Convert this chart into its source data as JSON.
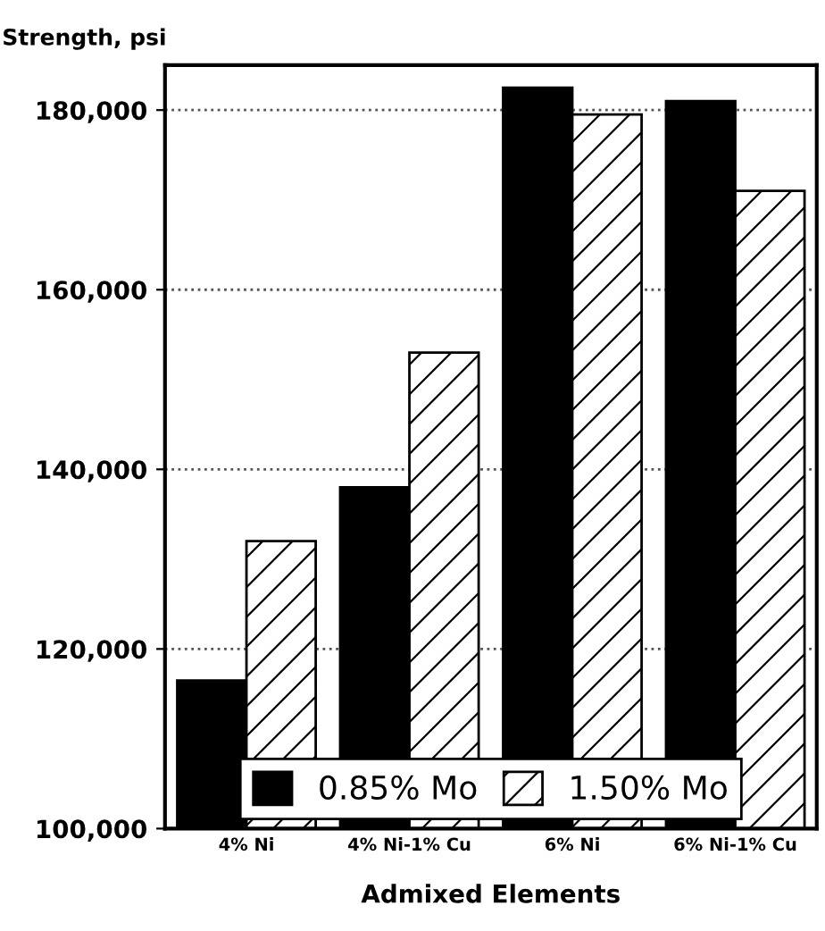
{
  "chart_data": {
    "type": "bar",
    "ylabel": "Strength, psi",
    "xlabel": "Admixed Elements",
    "categories": [
      "4% Ni",
      "4% Ni-1% Cu",
      "6% Ni",
      "6% Ni-1% Cu"
    ],
    "series": [
      {
        "name": "0.85% Mo",
        "color": "#000000",
        "values": [
          116500,
          138000,
          182500,
          181000
        ]
      },
      {
        "name": "1.50% Mo",
        "color": "#000000",
        "values": [
          132000,
          153000,
          179500,
          171000
        ]
      }
    ],
    "ylim": [
      100000,
      185000
    ],
    "yticks": [
      {
        "value": 100000,
        "label": "100,000"
      },
      {
        "value": 120000,
        "label": "120,000"
      },
      {
        "value": 140000,
        "label": "140,000"
      },
      {
        "value": 160000,
        "label": "160,000"
      },
      {
        "value": 180000,
        "label": "180,000"
      }
    ],
    "grid": "y",
    "legend": "bottom"
  }
}
